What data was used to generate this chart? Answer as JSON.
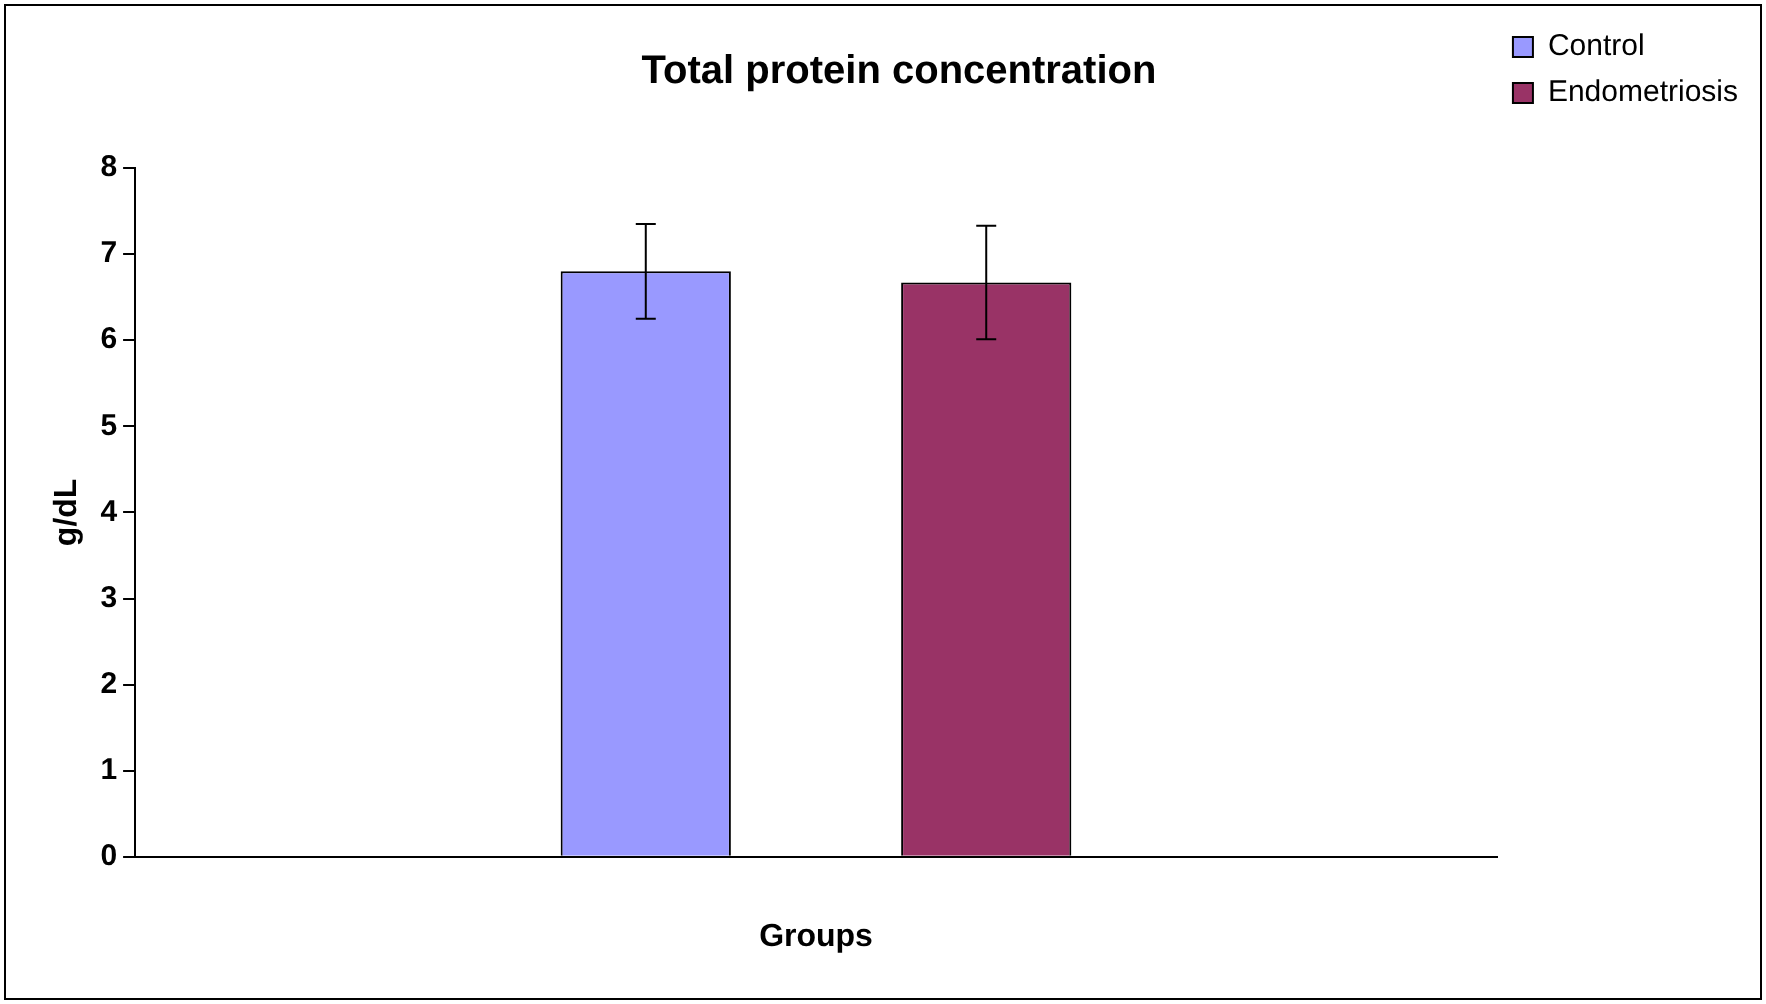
{
  "chart_data": {
    "type": "bar",
    "title": "Total protein concentration",
    "xlabel": "Groups",
    "ylabel": "g/dL",
    "categories": [
      null
    ],
    "series": [
      {
        "name": "Control",
        "color": "#9999ff",
        "values": [
          6.8
        ],
        "errors": [
          0.55
        ]
      },
      {
        "name": "Endometriosis",
        "color": "#993366",
        "values": [
          6.67
        ],
        "errors": [
          0.66
        ]
      }
    ],
    "ylim": [
      0,
      8
    ],
    "yticks": [
      0,
      1,
      2,
      3,
      4,
      5,
      6,
      7,
      8
    ],
    "grid": false,
    "legend": "top right"
  }
}
